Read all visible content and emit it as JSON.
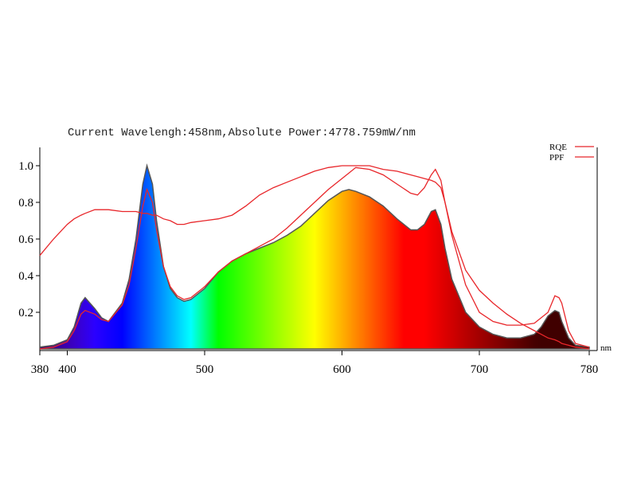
{
  "chart_data": {
    "type": "line",
    "title": "Current Wavelengh:458nm,Absolute Power:4778.759mW/nm",
    "x_label": "nm",
    "x": [
      380,
      390,
      400,
      405,
      410,
      413,
      420,
      425,
      430,
      440,
      445,
      450,
      455,
      458,
      462,
      465,
      470,
      475,
      480,
      485,
      490,
      500,
      510,
      520,
      530,
      540,
      550,
      560,
      570,
      580,
      590,
      600,
      605,
      610,
      620,
      630,
      640,
      650,
      655,
      660,
      665,
      668,
      672,
      675,
      680,
      690,
      700,
      710,
      720,
      730,
      740,
      745,
      750,
      755,
      758,
      760,
      765,
      770,
      780
    ],
    "spectrum": {
      "values": [
        0.01,
        0.02,
        0.05,
        0.12,
        0.25,
        0.28,
        0.22,
        0.17,
        0.15,
        0.25,
        0.38,
        0.6,
        0.9,
        1.0,
        0.9,
        0.7,
        0.45,
        0.33,
        0.28,
        0.26,
        0.27,
        0.33,
        0.42,
        0.48,
        0.52,
        0.55,
        0.58,
        0.62,
        0.67,
        0.74,
        0.81,
        0.86,
        0.87,
        0.86,
        0.83,
        0.78,
        0.71,
        0.65,
        0.65,
        0.68,
        0.75,
        0.76,
        0.68,
        0.55,
        0.38,
        0.2,
        0.12,
        0.08,
        0.06,
        0.06,
        0.08,
        0.12,
        0.18,
        0.21,
        0.2,
        0.15,
        0.06,
        0.02,
        0.01
      ]
    },
    "series": [
      {
        "name": "RQE",
        "color": "#e8262a",
        "values": [
          0.51,
          0.6,
          0.68,
          0.71,
          0.73,
          0.74,
          0.76,
          0.76,
          0.76,
          0.75,
          0.75,
          0.75,
          0.74,
          0.74,
          0.73,
          0.73,
          0.71,
          0.7,
          0.68,
          0.68,
          0.69,
          0.7,
          0.71,
          0.73,
          0.78,
          0.84,
          0.88,
          0.91,
          0.94,
          0.97,
          0.99,
          1.0,
          1.0,
          1.0,
          1.0,
          0.98,
          0.97,
          0.95,
          0.94,
          0.93,
          0.92,
          0.91,
          0.88,
          0.8,
          0.64,
          0.43,
          0.32,
          0.25,
          0.19,
          0.14,
          0.1,
          0.08,
          0.06,
          0.05,
          0.04,
          0.03,
          0.02,
          0.01,
          0
        ]
      },
      {
        "name": "PPF",
        "color": "#e8262a",
        "values": [
          0,
          0.01,
          0.04,
          0.1,
          0.19,
          0.21,
          0.19,
          0.16,
          0.15,
          0.24,
          0.35,
          0.55,
          0.78,
          0.87,
          0.8,
          0.65,
          0.45,
          0.34,
          0.29,
          0.27,
          0.28,
          0.34,
          0.42,
          0.48,
          0.52,
          0.56,
          0.6,
          0.66,
          0.73,
          0.8,
          0.87,
          0.93,
          0.96,
          0.99,
          0.98,
          0.95,
          0.9,
          0.85,
          0.84,
          0.88,
          0.95,
          0.98,
          0.92,
          0.8,
          0.62,
          0.35,
          0.2,
          0.15,
          0.13,
          0.13,
          0.14,
          0.17,
          0.2,
          0.29,
          0.28,
          0.25,
          0.1,
          0.03,
          0.01
        ]
      }
    ],
    "xlim": [
      380,
      780
    ],
    "xticks": [
      380,
      400,
      500,
      600,
      700,
      780
    ],
    "ylim": [
      0,
      1.1
    ],
    "yticks": [
      0.2,
      0.4,
      0.6,
      0.8,
      {
        "value": 1,
        "label": "1.0"
      }
    ]
  }
}
